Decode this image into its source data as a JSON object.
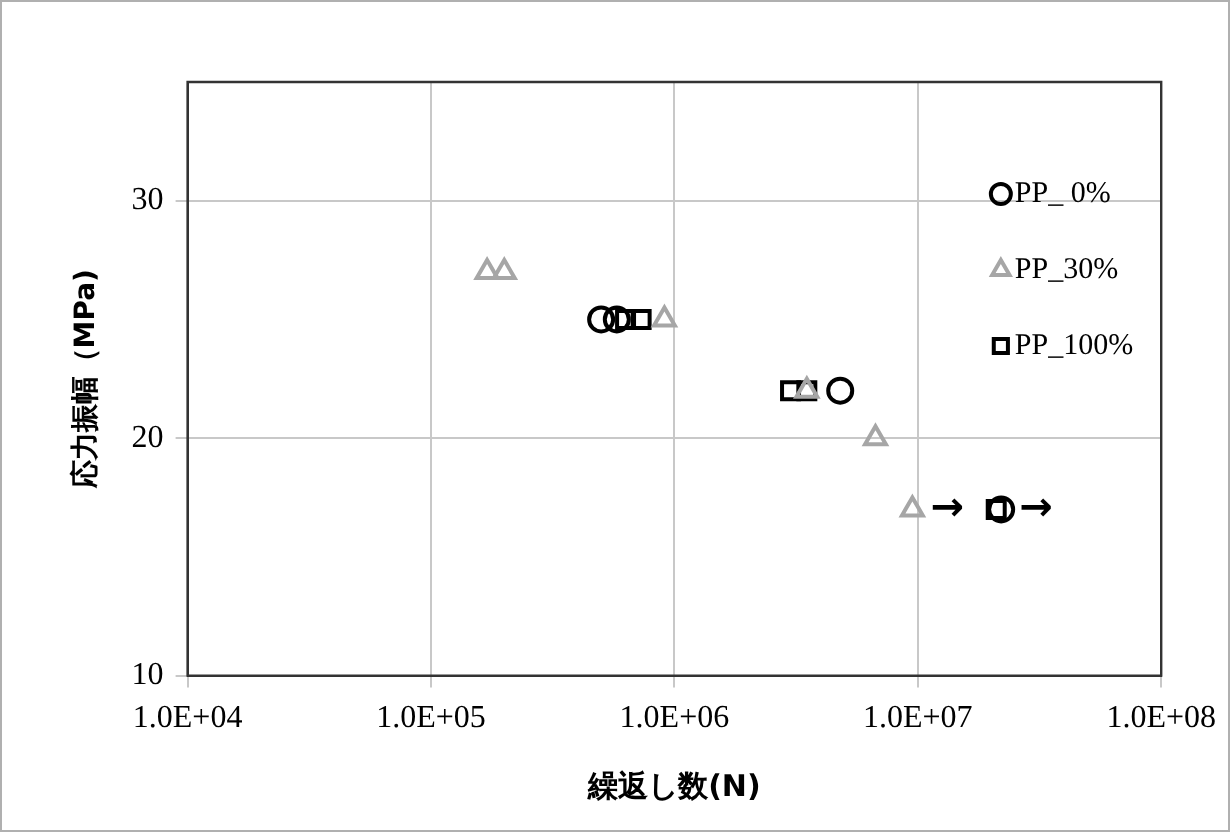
{
  "chart_data": {
    "type": "scatter",
    "xlabel": "繰返し数(N)",
    "ylabel": "応力振幅（MPa)",
    "log": "x",
    "xlim": [
      10000,
      100000000
    ],
    "xticks": [
      {
        "value": 10000,
        "label": "1.0E+04"
      },
      {
        "value": 100000,
        "label": "1.0E+05"
      },
      {
        "value": 1000000,
        "label": "1.0E+06"
      },
      {
        "value": 10000000,
        "label": "1.0E+07"
      },
      {
        "value": 100000000,
        "label": "1.0E+08"
      }
    ],
    "ylim": [
      10,
      35
    ],
    "yticks": [
      10,
      20,
      30
    ],
    "grid": true,
    "legend": "top right",
    "series": [
      {
        "name": "PP_ 0%",
        "color": "#000000",
        "marker": "circle",
        "x": [
          500000,
          580000,
          4800000,
          22000000
        ],
        "values": [
          25,
          25,
          22,
          17
        ]
      },
      {
        "name": "PP_30%",
        "color": "#a6a6a6",
        "marker": "triangle",
        "x": [
          170000,
          200000,
          910000,
          3500000,
          6700000,
          9500000
        ],
        "values": [
          27,
          27,
          25,
          22,
          20,
          17
        ]
      },
      {
        "name": "PP_100%",
        "color": "#000000",
        "marker": "square",
        "x": [
          630000,
          730000,
          3000000,
          3500000,
          21000000
        ],
        "values": [
          25,
          25,
          22,
          22,
          17
        ]
      }
    ],
    "annotations": [
      {
        "text": "→",
        "x": 9500000,
        "y": 17
      },
      {
        "text": "→",
        "x": 22000000,
        "y": 17
      }
    ]
  }
}
